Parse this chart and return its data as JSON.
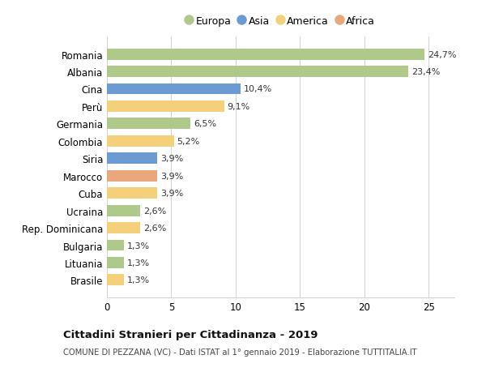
{
  "categories": [
    "Romania",
    "Albania",
    "Cina",
    "Perù",
    "Germania",
    "Colombia",
    "Siria",
    "Marocco",
    "Cuba",
    "Ucraina",
    "Rep. Dominicana",
    "Bulgaria",
    "Lituania",
    "Brasile"
  ],
  "values": [
    24.7,
    23.4,
    10.4,
    9.1,
    6.5,
    5.2,
    3.9,
    3.9,
    3.9,
    2.6,
    2.6,
    1.3,
    1.3,
    1.3
  ],
  "continents": [
    "Europa",
    "Europa",
    "Asia",
    "America",
    "Europa",
    "America",
    "Asia",
    "Africa",
    "America",
    "Europa",
    "America",
    "Europa",
    "Europa",
    "America"
  ],
  "colors": {
    "Europa": "#aec98a",
    "Asia": "#6b9bd2",
    "America": "#f5d07a",
    "Africa": "#e8a87c"
  },
  "legend_order": [
    "Europa",
    "Asia",
    "America",
    "Africa"
  ],
  "title": "Cittadini Stranieri per Cittadinanza - 2019",
  "subtitle": "COMUNE DI PEZZANA (VC) - Dati ISTAT al 1° gennaio 2019 - Elaborazione TUTTITALIA.IT",
  "xlim": [
    0,
    27
  ],
  "xticks": [
    0,
    5,
    10,
    15,
    20,
    25
  ],
  "background_color": "#ffffff",
  "grid_color": "#d0d0d0",
  "label_format": [
    "24,7%",
    "23,4%",
    "10,4%",
    "9,1%",
    "6,5%",
    "5,2%",
    "3,9%",
    "3,9%",
    "3,9%",
    "2,6%",
    "2,6%",
    "1,3%",
    "1,3%",
    "1,3%"
  ],
  "bar_height": 0.65
}
